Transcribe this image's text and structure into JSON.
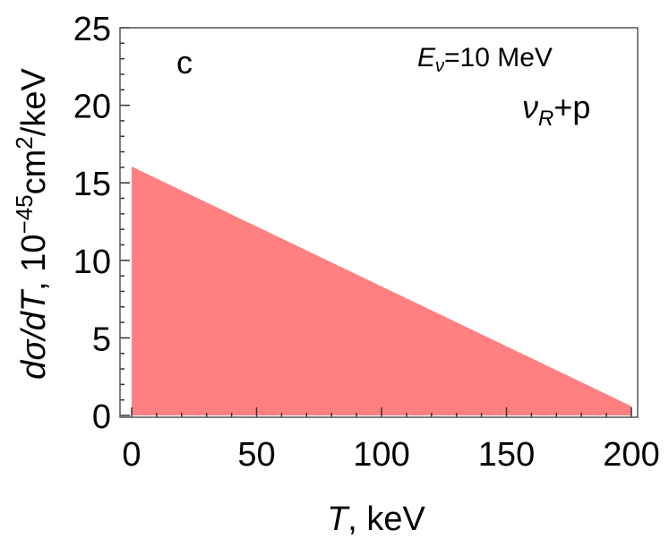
{
  "chart_data": {
    "type": "area",
    "panel_label": "c",
    "annotations": {
      "energy": {
        "symbol": "E",
        "sub": "ν",
        "rest": "=10 MeV"
      },
      "process": {
        "symbol": "ν",
        "sub": "R",
        "rest": "+p"
      }
    },
    "xlabel": {
      "italic": "T",
      "rest": ", keV"
    },
    "ylabel": {
      "italic": "dσ/dT",
      "rest": ", 10",
      "sup1": "−45",
      "mid": "cm",
      "sup2": "2",
      "end": "/keV"
    },
    "xlim": [
      0,
      200
    ],
    "ylim": [
      0,
      25
    ],
    "xticks": [
      0,
      50,
      100,
      150,
      200
    ],
    "yticks": [
      0,
      5,
      10,
      15,
      20,
      25
    ],
    "x_minor_step": 10,
    "y_minor_step": 1,
    "grid": false,
    "series": [
      {
        "x": [
          0,
          200
        ],
        "y": [
          16.05,
          0.6
        ],
        "color": "#ff8080"
      }
    ]
  }
}
